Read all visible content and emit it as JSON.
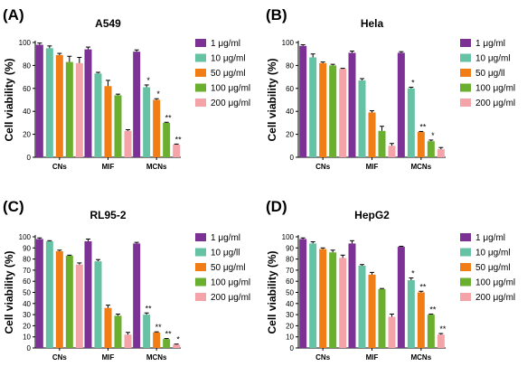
{
  "colors": {
    "series": [
      "#7b3294",
      "#66c2a4",
      "#f07d16",
      "#6ab02e",
      "#f4a3a8"
    ],
    "axis": "#000000"
  },
  "chart_data": [
    {
      "type": "bar",
      "panel_label": "(A)",
      "title": "A549",
      "ylabel": "Cell viability (%)",
      "ylim": [
        0,
        100
      ],
      "yticks": [
        0,
        20,
        40,
        60,
        80,
        100
      ],
      "categories": [
        "CNs",
        "MIF",
        "MCNs"
      ],
      "legend": "right",
      "series": [
        {
          "name": "1 μg/ml",
          "values": [
            98,
            94,
            92
          ],
          "errors": [
            1.5,
            2,
            1.5
          ]
        },
        {
          "name": "10 μg/ml",
          "values": [
            95,
            73,
            61
          ],
          "errors": [
            2,
            1,
            2
          ]
        },
        {
          "name": "50 μg/ml",
          "values": [
            89,
            62,
            50
          ],
          "errors": [
            1.5,
            5,
            1
          ]
        },
        {
          "name": "100 μg/ml",
          "values": [
            83,
            54,
            30
          ],
          "errors": [
            5,
            1,
            0.5
          ]
        },
        {
          "name": "200 μg/ml",
          "values": [
            82,
            23,
            11
          ],
          "errors": [
            5,
            1,
            0.5
          ]
        }
      ],
      "annotations": [
        {
          "category": 2,
          "series": 1,
          "text": "*"
        },
        {
          "category": 2,
          "series": 2,
          "text": "*"
        },
        {
          "category": 2,
          "series": 3,
          "text": "**"
        },
        {
          "category": 2,
          "series": 4,
          "text": "**"
        }
      ]
    },
    {
      "type": "bar",
      "panel_label": "(B)",
      "title": "Hela",
      "ylabel": "Cell viability (%)",
      "ylim": [
        0,
        100
      ],
      "yticks": [
        0,
        20,
        40,
        60,
        80,
        100
      ],
      "categories": [
        "CNs",
        "MIF",
        "MCNs"
      ],
      "legend": "right",
      "series": [
        {
          "name": "1 μg/ml",
          "values": [
            97,
            91,
            91
          ],
          "errors": [
            1,
            1.5,
            1
          ]
        },
        {
          "name": "10 μg/ml",
          "values": [
            87,
            67,
            60
          ],
          "errors": [
            3,
            1.5,
            1
          ]
        },
        {
          "name": "50 μg/ll",
          "values": [
            82,
            39,
            22
          ],
          "errors": [
            1,
            1.5,
            0.5
          ]
        },
        {
          "name": "100 μg/ml",
          "values": [
            80,
            23,
            14
          ],
          "errors": [
            1,
            4,
            1
          ]
        },
        {
          "name": "200 μg/ml",
          "values": [
            77,
            10,
            7
          ],
          "errors": [
            0.5,
            2,
            1.5
          ]
        }
      ],
      "annotations": [
        {
          "category": 2,
          "series": 1,
          "text": "*"
        },
        {
          "category": 2,
          "series": 2,
          "text": "**"
        },
        {
          "category": 2,
          "series": 3,
          "text": "*"
        }
      ]
    },
    {
      "type": "bar",
      "panel_label": "(C)",
      "title": "RL95-2",
      "ylabel": "Cell viability (%)",
      "ylim": [
        0,
        100
      ],
      "yticks": [
        0,
        10,
        20,
        30,
        40,
        50,
        60,
        70,
        80,
        90,
        100
      ],
      "categories": [
        "CNs",
        "MIF",
        "MCNs"
      ],
      "legend": "right",
      "series": [
        {
          "name": "1 μg/ml",
          "values": [
            98,
            96,
            94
          ],
          "errors": [
            1,
            2,
            1
          ]
        },
        {
          "name": "10 μg/ll",
          "values": [
            96,
            78,
            30
          ],
          "errors": [
            0.5,
            1.5,
            1.5
          ]
        },
        {
          "name": "50 μg/ml",
          "values": [
            87,
            36,
            14
          ],
          "errors": [
            1,
            2.5,
            0.5
          ]
        },
        {
          "name": "100 μg/ml",
          "values": [
            83,
            29,
            8
          ],
          "errors": [
            0.5,
            1.5,
            0.5
          ]
        },
        {
          "name": "200 μg/ml",
          "values": [
            75,
            12,
            3
          ],
          "errors": [
            1.5,
            2,
            0.5
          ]
        }
      ],
      "annotations": [
        {
          "category": 2,
          "series": 1,
          "text": "**"
        },
        {
          "category": 2,
          "series": 2,
          "text": "**"
        },
        {
          "category": 2,
          "series": 3,
          "text": "**"
        },
        {
          "category": 2,
          "series": 4,
          "text": "*"
        }
      ]
    },
    {
      "type": "bar",
      "panel_label": "(D)",
      "title": "HepG2",
      "ylabel": "Cell viability (%)",
      "ylim": [
        0,
        100
      ],
      "yticks": [
        0,
        10,
        20,
        30,
        40,
        50,
        60,
        70,
        80,
        90,
        100
      ],
      "categories": [
        "CNs",
        "MIF",
        "MCNs"
      ],
      "legend": "right",
      "series": [
        {
          "name": "1 μg/ml",
          "values": [
            98,
            94,
            91
          ],
          "errors": [
            1,
            2.5,
            0.5
          ]
        },
        {
          "name": "10 μg/ml",
          "values": [
            94,
            74,
            61
          ],
          "errors": [
            1.5,
            1,
            2
          ]
        },
        {
          "name": "50 μg/ml",
          "values": [
            89,
            66,
            50
          ],
          "errors": [
            1,
            2,
            1
          ]
        },
        {
          "name": "100 μg/ml",
          "values": [
            86,
            53,
            30
          ],
          "errors": [
            2,
            0.5,
            0.5
          ]
        },
        {
          "name": "200 μg/ml",
          "values": [
            81,
            28,
            12
          ],
          "errors": [
            2.5,
            2.5,
            1
          ]
        }
      ],
      "annotations": [
        {
          "category": 2,
          "series": 1,
          "text": "*"
        },
        {
          "category": 2,
          "series": 2,
          "text": "**"
        },
        {
          "category": 2,
          "series": 3,
          "text": "**"
        },
        {
          "category": 2,
          "series": 4,
          "text": "**"
        }
      ]
    }
  ]
}
